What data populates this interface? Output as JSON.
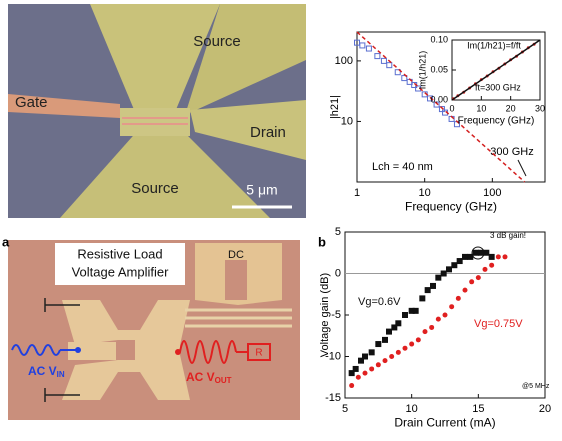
{
  "figure": {
    "panels": [
      "a",
      "b"
    ],
    "micrograph_top": {
      "labels": [
        "Source",
        "Gate",
        "Drain",
        "Source"
      ],
      "scale_bar": "5 μm"
    },
    "micrograph_bottom": {
      "title": [
        "Resistive Load",
        "Voltage Amplifier"
      ],
      "labels": [
        "DC",
        "AC V",
        "IN",
        "AC V",
        "OUT",
        "R"
      ]
    }
  },
  "chart_data": [
    {
      "type": "scatter",
      "xlog": true,
      "ylog": true,
      "xlim": [
        1,
        600
      ],
      "ylim": [
        1,
        300
      ],
      "xticks": [
        1,
        10,
        100
      ],
      "yticks": [
        10,
        100
      ],
      "xlabel": "Frequency (GHz)",
      "ylabel": "|h21|",
      "annotations": [
        "Lch = 40 nm",
        "300 GHz"
      ],
      "series": [
        {
          "color": "#5a6fd0",
          "marker": "square",
          "x": [
            1,
            1.2,
            1.5,
            2,
            2.5,
            3,
            4,
            5,
            6,
            7,
            8,
            10,
            12,
            15,
            18,
            20,
            25,
            30
          ],
          "values": [
            200,
            180,
            160,
            120,
            100,
            85,
            65,
            52,
            45,
            40,
            35,
            28,
            24,
            19,
            16,
            14,
            11,
            9
          ]
        },
        {
          "type": "line",
          "color": "#d42020",
          "x": [
            1,
            300
          ],
          "values": [
            300,
            1
          ]
        }
      ]
    },
    {
      "type": "scatter",
      "xlim": [
        0,
        30
      ],
      "ylim": [
        0,
        0.1
      ],
      "xticks": [
        0,
        10,
        20,
        30
      ],
      "yticks": [
        {
          "value": 0,
          "label": "0.00"
        },
        {
          "value": 0.05,
          "label": "0.05"
        },
        {
          "value": 0.1,
          "label": "0.10"
        }
      ],
      "title": "Im(1/h21)=f/ft",
      "xlabel": "Frequency (GHz)",
      "ylabel": "Im(1/h21)",
      "annotations": [
        "ft=300 GHz"
      ],
      "series": [
        {
          "color": "#d42020",
          "marker": "circle",
          "x": [
            0.5,
            2,
            4,
            6,
            8,
            10,
            12,
            14,
            16,
            18,
            20,
            22,
            24,
            26,
            28
          ],
          "values": [
            0.002,
            0.007,
            0.013,
            0.02,
            0.027,
            0.034,
            0.04,
            0.047,
            0.053,
            0.06,
            0.067,
            0.073,
            0.08,
            0.087,
            0.093
          ]
        },
        {
          "type": "line",
          "color": "#111111",
          "x": [
            0,
            30
          ],
          "values": [
            0,
            0.1
          ]
        }
      ]
    },
    {
      "type": "scatter",
      "xlim": [
        5,
        20
      ],
      "ylim": [
        -15,
        5
      ],
      "xticks": [
        5,
        10,
        15,
        20
      ],
      "yticks": [
        -15,
        -10,
        -5,
        0,
        5
      ],
      "xlabel": "Drain Current (mA)",
      "ylabel": "Voltage gain (dB)",
      "annotations": [
        "3 dB gain!",
        "@5 MHz"
      ],
      "series": [
        {
          "name": "Vg=0.6V",
          "color": "#111111",
          "marker": "square",
          "x": [
            5.5,
            5.8,
            6.2,
            6.5,
            7,
            7.5,
            8,
            8.3,
            8.7,
            9,
            9.5,
            10,
            10.3,
            10.8,
            11.2,
            11.6,
            12,
            12.4,
            12.8,
            13.2,
            13.6,
            14,
            14.4,
            14.8,
            15.2,
            15.6,
            16
          ],
          "values": [
            -12,
            -11.5,
            -10.5,
            -10,
            -9.5,
            -8.5,
            -8,
            -7,
            -6.5,
            -6,
            -5,
            -4.5,
            -4.5,
            -3,
            -2,
            -1.5,
            -0.5,
            0,
            0.5,
            1,
            1.5,
            2,
            2,
            2.5,
            2.5,
            2.5,
            2
          ]
        },
        {
          "name": "Vg=0.75V",
          "color": "#e02020",
          "marker": "circle",
          "x": [
            5.5,
            6,
            6.5,
            7,
            7.5,
            8,
            8.5,
            9,
            9.5,
            10,
            10.5,
            11,
            11.5,
            12,
            12.5,
            13,
            13.5,
            14,
            14.5,
            15,
            15.5,
            16,
            16.5,
            17
          ],
          "values": [
            -13.5,
            -12.5,
            -12,
            -11.5,
            -11,
            -10.5,
            -10,
            -9.5,
            -9,
            -8.5,
            -8,
            -7,
            -6.5,
            -5.5,
            -5,
            -4,
            -3,
            -2,
            -1,
            -0.5,
            0.5,
            1,
            2,
            2
          ]
        }
      ]
    }
  ]
}
